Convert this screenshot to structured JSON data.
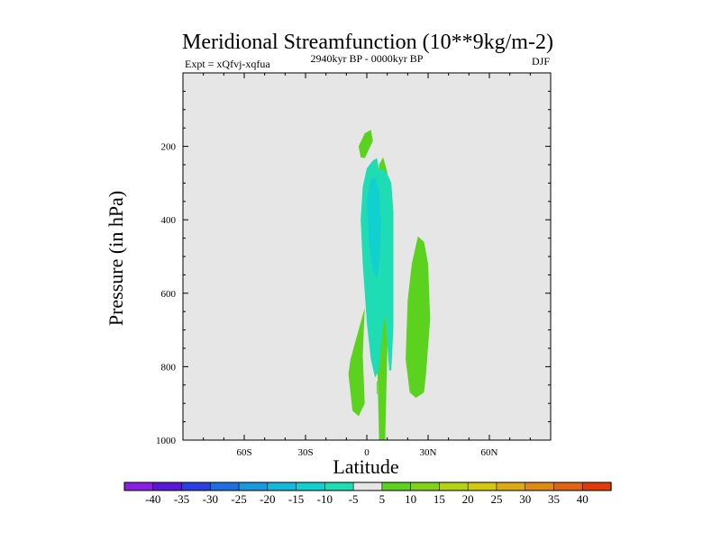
{
  "chart_data": {
    "type": "contour",
    "title": "Meridional Streamfunction (10**9kg/m-2)",
    "experiment_label": "Expt = xQfvj-xqfua",
    "period_label": "2940kyr BP - 0000kyr BP",
    "season_label": "DJF",
    "xlabel": "Latitude",
    "ylabel": "Pressure (in hPa)",
    "xlim": [
      -90,
      90
    ],
    "ylim": [
      1000,
      0
    ],
    "x_ticks": [
      {
        "value": -60,
        "label": "60S"
      },
      {
        "value": -30,
        "label": "30S"
      },
      {
        "value": 0,
        "label": "0"
      },
      {
        "value": 30,
        "label": "30N"
      },
      {
        "value": 60,
        "label": "60N"
      }
    ],
    "y_ticks": [
      {
        "value": 200,
        "label": "200"
      },
      {
        "value": 400,
        "label": "400"
      },
      {
        "value": 600,
        "label": "600"
      },
      {
        "value": 800,
        "label": "800"
      },
      {
        "value": 1000,
        "label": "1000"
      }
    ],
    "y_minor_step": 50,
    "x_minor_step": 10,
    "background_color": "#e6e6e6",
    "colorbar": {
      "levels": [
        "-40",
        "-35",
        "-30",
        "-25",
        "-20",
        "-15",
        "-10",
        "-5",
        "5",
        "10",
        "15",
        "20",
        "25",
        "30",
        "35",
        "40"
      ],
      "colors": [
        "#8a1fe0",
        "#5a17d6",
        "#2a3fe0",
        "#1f6fe0",
        "#1a98e0",
        "#14b8dc",
        "#10d0d0",
        "#1edcb4",
        "#e6e6e6",
        "#5ad21e",
        "#82d21a",
        "#b4d214",
        "#d2c814",
        "#dcaa14",
        "#e08a14",
        "#e06414",
        "#e03c0a"
      ]
    },
    "regions": [
      {
        "level_index": 9,
        "name": "positive 5-10 upper jet",
        "points": [
          [
            6,
            1000
          ],
          [
            9,
            1000
          ],
          [
            10,
            760
          ],
          [
            11,
            500
          ],
          [
            10,
            270
          ],
          [
            8,
            230
          ],
          [
            6,
            250
          ],
          [
            5,
            500
          ],
          [
            5,
            760
          ]
        ]
      },
      {
        "level_index": 9,
        "name": "positive 5-10 upper left blob",
        "points": [
          [
            -4,
            200
          ],
          [
            -1,
            165
          ],
          [
            2,
            155
          ],
          [
            3,
            185
          ],
          [
            -1,
            232
          ],
          [
            -3,
            230
          ]
        ]
      },
      {
        "level_index": 9,
        "name": "positive 5-10 SH low",
        "points": [
          [
            -8,
            780
          ],
          [
            -4,
            700
          ],
          [
            -1,
            640
          ],
          [
            -2,
            770
          ],
          [
            -1,
            900
          ],
          [
            -4,
            935
          ],
          [
            -7,
            920
          ],
          [
            -9,
            820
          ]
        ]
      },
      {
        "level_index": 9,
        "name": "positive 5-10 NH",
        "points": [
          [
            25,
            445
          ],
          [
            28,
            460
          ],
          [
            30,
            520
          ],
          [
            31,
            670
          ],
          [
            29,
            820
          ],
          [
            28,
            870
          ],
          [
            24,
            885
          ],
          [
            21,
            870
          ],
          [
            19,
            780
          ],
          [
            20,
            620
          ],
          [
            22,
            520
          ]
        ]
      },
      {
        "level_index": 9,
        "name": "positive 5-10 sliver",
        "points": [
          [
            4.8,
            840
          ],
          [
            5.2,
            840
          ],
          [
            5.2,
            875
          ],
          [
            4.8,
            875
          ]
        ]
      },
      {
        "level_index": 7,
        "name": "negative -5 to -10 cell",
        "points": [
          [
            -2,
            310
          ],
          [
            0,
            260
          ],
          [
            3,
            238
          ],
          [
            5,
            232
          ],
          [
            6,
            265
          ],
          [
            8,
            262
          ],
          [
            10,
            275
          ],
          [
            12,
            300
          ],
          [
            13,
            380
          ],
          [
            13,
            520
          ],
          [
            13,
            690
          ],
          [
            12,
            810
          ],
          [
            11,
            810
          ],
          [
            10,
            740
          ],
          [
            9,
            660
          ],
          [
            8,
            690
          ],
          [
            6,
            810
          ],
          [
            4,
            830
          ],
          [
            2,
            780
          ],
          [
            0,
            680
          ],
          [
            -2,
            520
          ],
          [
            -3,
            400
          ]
        ]
      },
      {
        "level_index": 6,
        "name": "negative -10 to -15 core",
        "points": [
          [
            0,
            350
          ],
          [
            2,
            290
          ],
          [
            4,
            285
          ],
          [
            6,
            320
          ],
          [
            7,
            420
          ],
          [
            6,
            520
          ],
          [
            5,
            560
          ],
          [
            3,
            540
          ],
          [
            1,
            460
          ]
        ]
      }
    ]
  }
}
